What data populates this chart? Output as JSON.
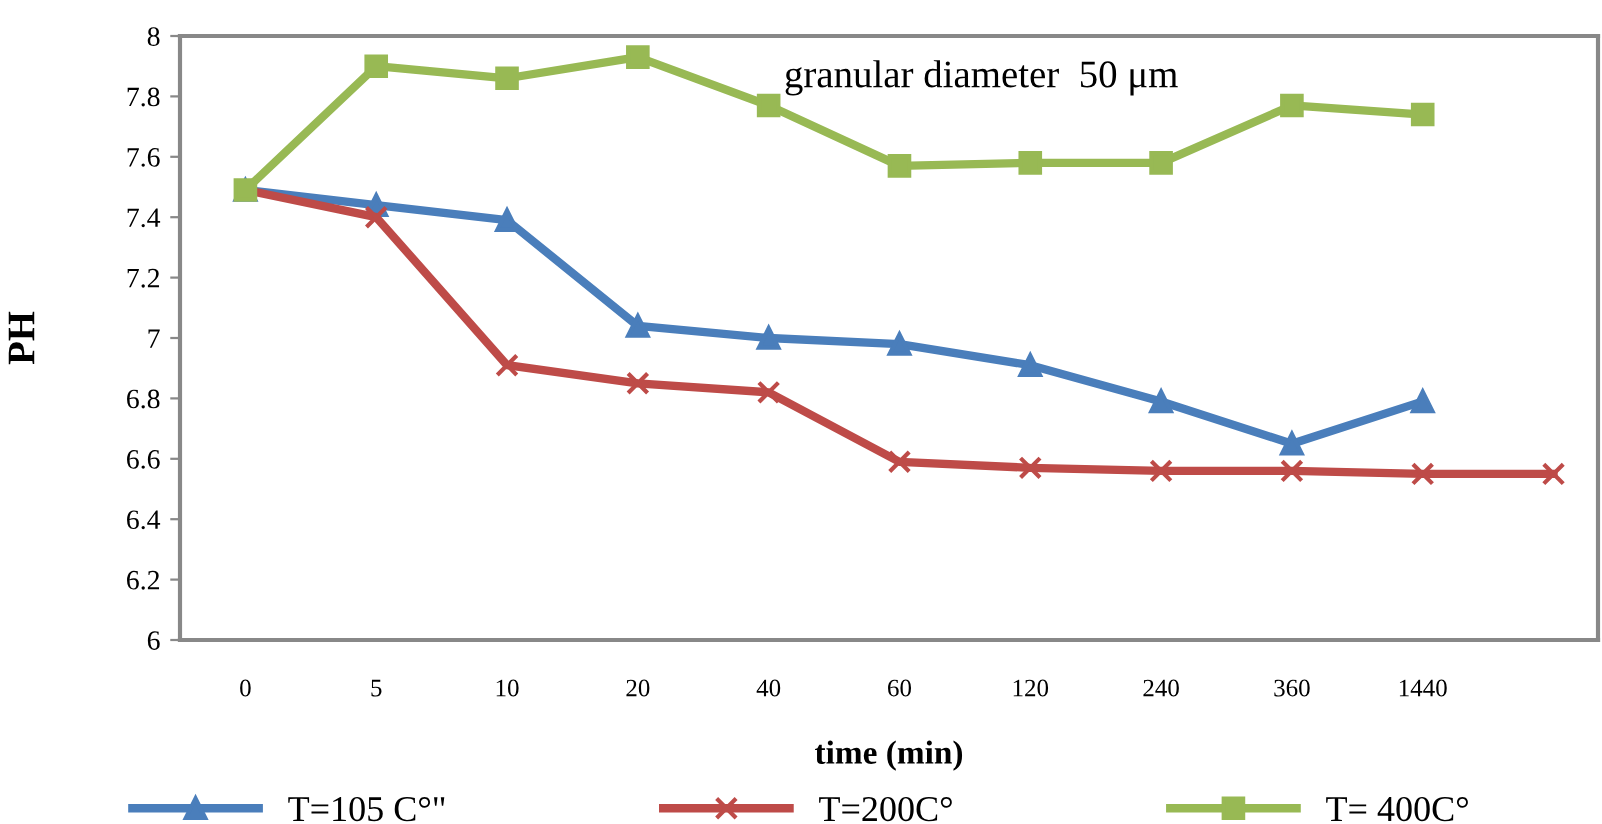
{
  "chart_data": {
    "type": "line",
    "xlabel": "time (min)",
    "ylabel": "PH",
    "categories": [
      "0",
      "5",
      "10",
      "20",
      "40",
      "60",
      "120",
      "240",
      "360",
      "1440",
      null
    ],
    "series": [
      {
        "name": "T=105 C°\"",
        "color": "#4a7ebb",
        "marker": "triangle",
        "values": [
          7.49,
          7.44,
          7.39,
          7.04,
          7.0,
          6.98,
          6.91,
          6.79,
          6.65,
          6.79,
          null
        ]
      },
      {
        "name": "T=200C°",
        "color": "#be4b48",
        "marker": "cross",
        "values": [
          7.49,
          7.4,
          6.91,
          6.85,
          6.82,
          6.59,
          6.57,
          6.56,
          6.56,
          6.55,
          6.55
        ]
      },
      {
        "name": "T= 400C°",
        "color": "#98b954",
        "marker": "square",
        "values": [
          7.49,
          7.9,
          7.86,
          7.93,
          7.77,
          7.57,
          7.58,
          7.58,
          7.77,
          7.74,
          null
        ]
      }
    ],
    "ylim": [
      6,
      8
    ],
    "yticks": [
      6,
      {
        "value": 6.2,
        "label": "6.2"
      },
      {
        "value": 6.4,
        "label": "6.4"
      },
      {
        "value": 6.6,
        "label": "6.6"
      },
      {
        "value": 6.8,
        "label": "6.8"
      },
      7,
      {
        "value": 7.2,
        "label": "7.2"
      },
      {
        "value": 7.4,
        "label": "7.4"
      },
      {
        "value": 7.6,
        "label": "7.6"
      },
      {
        "value": 7.8,
        "label": "7.8"
      },
      8
    ],
    "grid": false,
    "legend": "bottom",
    "line_style": "solid",
    "annotations": [
      "granular diameter  50 μm"
    ]
  }
}
